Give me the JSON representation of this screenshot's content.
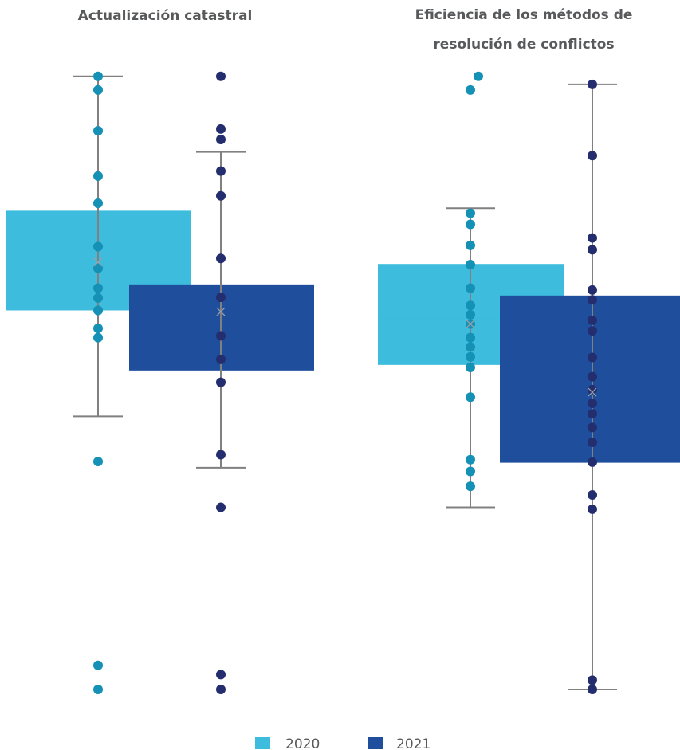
{
  "colors": {
    "box_2020": "#3dbcdd",
    "box_2021": "#1f4e9d",
    "point_2020": "#1491b5",
    "point_2021": "#242e6e",
    "whisker": "#808080",
    "mean_marker": "#9aa0a6",
    "title_text": "#58595b"
  },
  "legend": {
    "placement": "bottom-center",
    "items": [
      {
        "label": "2020",
        "color": "#3dbcdd"
      },
      {
        "label": "2021",
        "color": "#1f4e9d"
      }
    ]
  },
  "chart_data": [
    {
      "type": "box",
      "title_lines": [
        "Actualización catastral"
      ],
      "ylim": [
        0,
        1
      ],
      "grid": false,
      "series": [
        {
          "name": "2020",
          "q1": 0.612,
          "q3": 0.773,
          "median": 0.693,
          "mean": 0.69,
          "whisker_low": 0.441,
          "whisker_high": 0.99,
          "points": [
            0.99,
            0.968,
            0.902,
            0.829,
            0.785,
            0.715,
            0.68,
            0.648,
            0.632,
            0.612,
            0.583,
            0.568,
            0.368,
            0.039,
            0.0
          ]
        },
        {
          "name": "2021",
          "q1": 0.515,
          "q3": 0.654,
          "median": 0.567,
          "mean": 0.61,
          "whisker_low": 0.358,
          "whisker_high": 0.868,
          "points": [
            0.99,
            0.905,
            0.888,
            0.837,
            0.797,
            0.696,
            0.633,
            0.571,
            0.533,
            0.496,
            0.379,
            0.294,
            0.024,
            0.0
          ]
        }
      ]
    },
    {
      "type": "box",
      "title_lines": [
        "Eficiencia de los métodos de",
        "resolución de conflictos"
      ],
      "ylim": [
        0,
        1
      ],
      "grid": false,
      "series": [
        {
          "name": "2020",
          "q1": 0.524,
          "q3": 0.687,
          "median": 0.6,
          "mean": 0.59,
          "whisker_low": 0.294,
          "whisker_high": 0.777,
          "points": [
            0.99,
            0.968,
            0.769,
            0.751,
            0.717,
            0.686,
            0.648,
            0.62,
            0.605,
            0.59,
            0.568,
            0.553,
            0.537,
            0.52,
            0.472,
            0.371,
            0.352,
            0.328
          ]
        },
        {
          "name": "2021",
          "q1": 0.366,
          "q3": 0.636,
          "median": 0.488,
          "mean": 0.48,
          "whisker_low": 0.0,
          "whisker_high": 0.977,
          "points": [
            0.977,
            0.862,
            0.729,
            0.71,
            0.645,
            0.629,
            0.596,
            0.579,
            0.536,
            0.505,
            0.484,
            0.462,
            0.445,
            0.423,
            0.399,
            0.367,
            0.314,
            0.291,
            0.015,
            0.0
          ]
        }
      ]
    }
  ]
}
